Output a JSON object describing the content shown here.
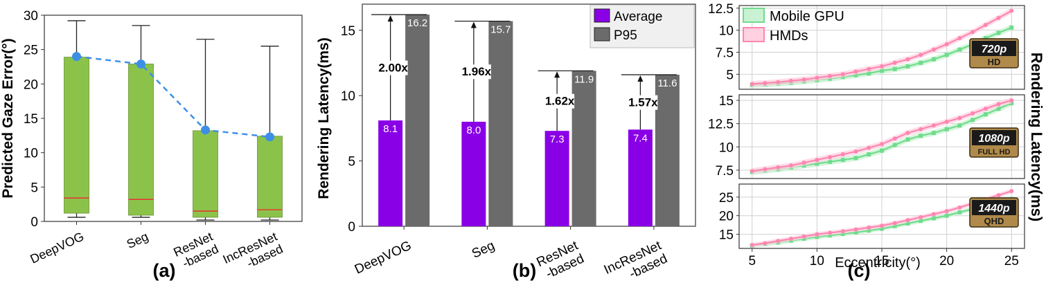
{
  "chart_data": [
    {
      "type": "box",
      "panel_label": "(a)",
      "ylabel": "Predicted Gaze Error(°)",
      "ylim": [
        0,
        30
      ],
      "yticks": [
        "0",
        "5",
        "10",
        "15",
        "20",
        "25",
        "30"
      ],
      "categories": [
        "DeepVOG",
        "Seg",
        "ResNet\n-based",
        "IncResNet\n-based"
      ],
      "boxes": [
        {
          "whisker_low": 0.6,
          "q1": 1.2,
          "median": 3.4,
          "q3": 23.9,
          "whisker_high": 29.2
        },
        {
          "whisker_low": 0.6,
          "q1": 0.9,
          "median": 3.2,
          "q3": 22.9,
          "whisker_high": 28.5
        },
        {
          "whisker_low": 0.2,
          "q1": 0.6,
          "median": 1.5,
          "q3": 13.2,
          "whisker_high": 26.5
        },
        {
          "whisker_low": 0.2,
          "q1": 0.6,
          "median": 1.7,
          "q3": 12.4,
          "whisker_high": 25.5
        }
      ],
      "mean_points": [
        24.0,
        22.9,
        13.3,
        12.3
      ],
      "colors": {
        "box": "#8bc34a",
        "median": "#e53935",
        "mean": "#3d8fe6",
        "line": "#3d8fe6"
      }
    },
    {
      "type": "bar",
      "panel_label": "(b)",
      "ylabel": "Rendering Latency(ms)",
      "ylim": [
        0,
        17
      ],
      "yticks": [
        "0",
        "5",
        "10",
        "15"
      ],
      "categories": [
        "DeepVOG",
        "Seg",
        "ResNet\n-based",
        "IncResNet\n-based"
      ],
      "series": [
        {
          "name": "Average",
          "values": [
            8.1,
            8.0,
            7.3,
            7.4
          ],
          "labels": [
            "8.1",
            "8.0",
            "7.3",
            "7.4"
          ],
          "color": "#8a00e6"
        },
        {
          "name": "P95",
          "values": [
            16.2,
            15.7,
            11.9,
            11.6
          ],
          "labels": [
            "16.2",
            "15.7",
            "11.9",
            "11.6"
          ],
          "color": "#6b6b6b"
        }
      ],
      "ratios": [
        "2.00x",
        "1.96x",
        "1.62x",
        "1.57x"
      ]
    },
    {
      "type": "line",
      "panel_label": "(c)",
      "xlabel": "Eccentricity(°)",
      "ylabel": "Rendering Latency(ms)",
      "xlim": [
        4,
        26
      ],
      "xticks": [
        "5",
        "10",
        "15",
        "20",
        "25"
      ],
      "legend": [
        "Mobile GPU",
        "HMDs"
      ],
      "colors": {
        "mobile": "#6fdc8c",
        "mobile_band": "#c8f2d2",
        "hmd": "#ff85b0",
        "hmd_band": "#ffd1e1"
      },
      "x": [
        5,
        6,
        7,
        8,
        9,
        10,
        11,
        12,
        13,
        14,
        15,
        16,
        17,
        18,
        19,
        20,
        21,
        22,
        23,
        24,
        25
      ],
      "subplots": [
        {
          "badge_main": "720p",
          "badge_sub": "HD",
          "ylim": [
            3.3,
            12.8
          ],
          "yticks": [
            "5",
            "7.5",
            "10",
            "12.5"
          ],
          "series": [
            {
              "name": "Mobile GPU",
              "values": [
                3.8,
                3.85,
                3.95,
                4.05,
                4.2,
                4.35,
                4.5,
                4.7,
                4.9,
                5.1,
                5.4,
                5.6,
                5.9,
                6.3,
                6.7,
                7.2,
                7.8,
                8.4,
                9.1,
                9.7,
                10.3
              ]
            },
            {
              "name": "HMDs",
              "values": [
                3.9,
                4.0,
                4.1,
                4.25,
                4.4,
                4.6,
                4.8,
                5.0,
                5.3,
                5.6,
                5.9,
                6.3,
                6.7,
                7.2,
                7.8,
                8.4,
                9.1,
                9.8,
                10.6,
                11.4,
                12.2
              ]
            }
          ]
        },
        {
          "badge_main": "1080p",
          "badge_sub": "FULL HD",
          "ylim": [
            6.6,
            15.6
          ],
          "yticks": [
            "7.5",
            "10",
            "12.5",
            "15"
          ],
          "series": [
            {
              "name": "Mobile GPU",
              "values": [
                7.3,
                7.45,
                7.6,
                7.8,
                8.0,
                8.2,
                8.4,
                8.6,
                8.8,
                9.2,
                9.6,
                10.2,
                10.8,
                11.2,
                11.5,
                11.9,
                12.3,
                12.9,
                13.5,
                14.1,
                14.7
              ]
            },
            {
              "name": "HMDs",
              "values": [
                7.4,
                7.6,
                7.8,
                8.0,
                8.3,
                8.6,
                8.9,
                9.2,
                9.5,
                9.9,
                10.3,
                10.9,
                11.5,
                11.9,
                12.3,
                12.7,
                13.1,
                13.6,
                14.1,
                14.6,
                15.0
              ]
            }
          ]
        },
        {
          "badge_main": "1440p",
          "badge_sub": "QHD",
          "ylim": [
            11.2,
            28.5
          ],
          "yticks": [
            "15",
            "20",
            "25"
          ],
          "series": [
            {
              "name": "Mobile GPU",
              "values": [
                12.0,
                12.4,
                12.8,
                13.3,
                13.8,
                14.3,
                14.7,
                15.1,
                15.5,
                16.0,
                16.5,
                17.2,
                17.9,
                18.6,
                19.3,
                20.0,
                20.9,
                21.8,
                22.7,
                23.6,
                24.5
              ]
            },
            {
              "name": "HMDs",
              "values": [
                12.1,
                12.6,
                13.2,
                13.8,
                14.4,
                15.0,
                15.4,
                15.8,
                16.3,
                16.8,
                17.3,
                18.0,
                18.8,
                19.6,
                20.4,
                21.2,
                22.2,
                23.3,
                24.4,
                25.5,
                26.6
              ]
            }
          ]
        }
      ]
    }
  ]
}
